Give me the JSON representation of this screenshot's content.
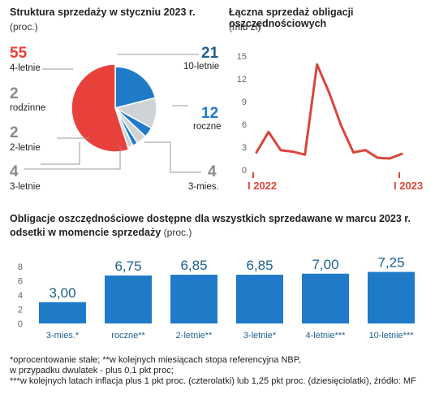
{
  "pie_chart": {
    "title": "Struktura sprzedaży w styczniu 2023 r.",
    "unit": "(proc.)"
  },
  "line_chart": {
    "title": "Łączna sprzedaż obligacji oszczędnościowych",
    "unit": "(mld zl)"
  },
  "bar_chart": {
    "title_line1": "Obligacje oszczędnościowe dostępne dla wszystkich sprzedawane w marcu 2023 r.",
    "title_line2": "odsetki w momencie sprzedaży",
    "unit": "(proc.)"
  },
  "footnote": {
    "line1": "*oprocentowanie stałe; **w kolejnych miesiącach stopa referencyjna NBP,",
    "line2": "w przypadku dwulatek - plus 0,1 pkt proc;",
    "line3": "***w kolejnych latach inflacja plus 1 pkt proc. (czterolatki) lub 1,25 pkt proc. (dziesięciolatki), źródło: MF"
  },
  "colors": {
    "red": "#e8413c",
    "blue": "#1f7bc8",
    "dark_blue": "#1f5f8b",
    "light_gray": "#cfd3d6",
    "gray_text": "#8a8a8a",
    "line": "#d9463a"
  },
  "chart_data": [
    {
      "type": "pie",
      "title": "Struktura sprzedaży w styczniu 2023 r.",
      "unit": "(proc.)",
      "slices": [
        {
          "label": "4-letnie",
          "value": 55,
          "color": "#e8413c"
        },
        {
          "label": "10-letnie",
          "value": 21,
          "color": "#1f7bc8"
        },
        {
          "label": "roczne",
          "value": 12,
          "color": "#cfd3d6"
        },
        {
          "label": "3-mies.",
          "value": 4,
          "color": "#1f7bc8"
        },
        {
          "label": "3-letnie",
          "value": 4,
          "color": "#cfd3d6"
        },
        {
          "label": "2-letnie",
          "value": 2,
          "color": "#1f7bc8"
        },
        {
          "label": "rodzinne",
          "value": 2,
          "color": "#cfd3d6"
        }
      ]
    },
    {
      "type": "line",
      "title": "Łączna sprzedaż obligacji oszczędnościowych",
      "unit": "(mld zl)",
      "x_labels": [
        "I 2022",
        "I 2023"
      ],
      "x": [
        0,
        1,
        2,
        3,
        4,
        5,
        6,
        7,
        8,
        9,
        10,
        11,
        12,
        13
      ],
      "y": [
        2.3,
        5.0,
        2.6,
        2.4,
        2.0,
        13.9,
        10.2,
        5.8,
        2.3,
        2.6,
        1.6,
        1.5,
        2.1,
        null
      ],
      "yticks": [
        0,
        3,
        6,
        9,
        12,
        15
      ],
      "ylim": [
        0,
        15
      ],
      "grid": false
    },
    {
      "type": "bar",
      "categories": [
        "3-mies.*",
        "roczne**",
        "2-letnie**",
        "3-letnie*",
        "4-letnie***",
        "10-letnie***"
      ],
      "values": [
        3.0,
        6.75,
        6.85,
        6.85,
        7.0,
        7.25
      ],
      "value_labels": [
        "3,00",
        "6,75",
        "6,85",
        "6,85",
        "7,00",
        "7,25"
      ],
      "yticks": [
        0,
        2,
        4,
        6,
        8
      ],
      "ylim": [
        0,
        8
      ],
      "grid": false
    }
  ]
}
